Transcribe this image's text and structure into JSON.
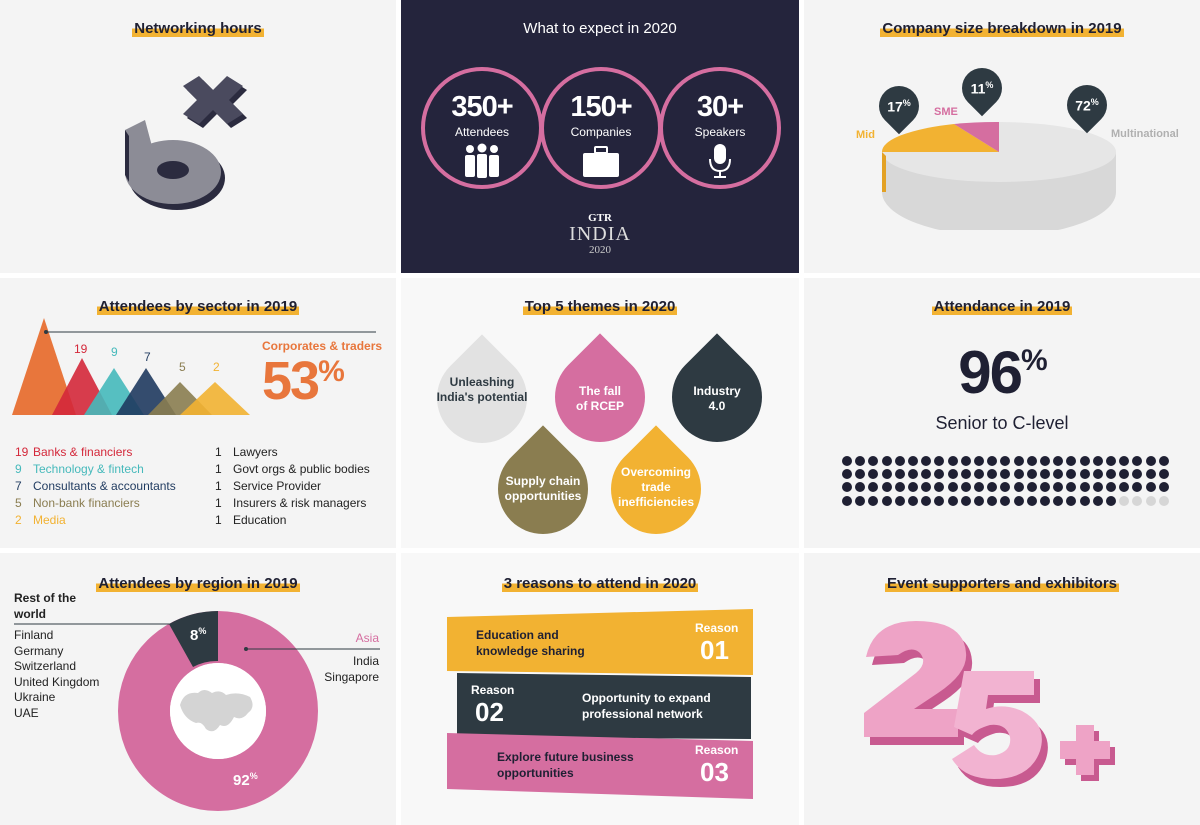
{
  "colors": {
    "navy": "#24243c",
    "pink": "#d56ea0",
    "orange": "#e8763c",
    "yellow": "#f2b232",
    "dark": "#2e3a42",
    "olive": "#8a7d50",
    "teal": "#45b9bb",
    "red": "#d4283a"
  },
  "networking": {
    "title": "Networking hours",
    "graphic_text": "6×"
  },
  "expect": {
    "title": "What to expect in 2020",
    "stats": [
      {
        "value": "350+",
        "label": "Attendees",
        "icon": "people-icon"
      },
      {
        "value": "150+",
        "label": "Companies",
        "icon": "briefcase-icon"
      },
      {
        "value": "30+",
        "label": "Speakers",
        "icon": "microphone-icon"
      }
    ],
    "logo_top": "GTR",
    "logo_main": "INDIA",
    "logo_year": "2020"
  },
  "company_size": {
    "title": "Company size breakdown in 2019",
    "segments": [
      {
        "label": "Mid",
        "percent": 17,
        "color": "#f2b232"
      },
      {
        "label": "SME",
        "percent": 11,
        "color": "#d56ea0"
      },
      {
        "label": "Multinational",
        "percent": 72,
        "color": "#e0e0e0"
      }
    ],
    "percent_sign": "%"
  },
  "sector": {
    "title": "Attendees by sector in 2019",
    "highlight_label": "Corporates & traders",
    "highlight_value": "53",
    "highlight_sign": "%",
    "peaks": [
      {
        "value": "19",
        "color": "#d4283a"
      },
      {
        "value": "9",
        "color": "#45b9bb"
      },
      {
        "value": "7",
        "color": "#1f3a5f"
      },
      {
        "value": "5",
        "color": "#8a7d50"
      },
      {
        "value": "2",
        "color": "#f2b232"
      }
    ],
    "legend_left": [
      {
        "n": "19",
        "label": "Banks & financiers",
        "color": "#d4283a"
      },
      {
        "n": "9",
        "label": "Technology & fintech",
        "color": "#45b9bb"
      },
      {
        "n": "7",
        "label": "Consultants & accountants",
        "color": "#1f3a5f"
      },
      {
        "n": "5",
        "label": "Non-bank financiers",
        "color": "#8a7d50"
      },
      {
        "n": "2",
        "label": "Media",
        "color": "#f2b232"
      }
    ],
    "legend_right": [
      {
        "n": "1",
        "label": "Lawyers"
      },
      {
        "n": "1",
        "label": "Govt orgs & public bodies"
      },
      {
        "n": "1",
        "label": "Service Provider"
      },
      {
        "n": "1",
        "label": "Insurers & risk managers"
      },
      {
        "n": "1",
        "label": "Education"
      }
    ]
  },
  "themes": {
    "title": "Top 5 themes in 2020",
    "items": [
      {
        "label": "Unleashing India's potential",
        "color": "#e2e2e2",
        "text_color": "#2e3a42"
      },
      {
        "label": "The fall of RCEP",
        "color": "#d56ea0",
        "text_color": "#ffffff"
      },
      {
        "label": "Industry 4.0",
        "color": "#2e3a42",
        "text_color": "#ffffff"
      },
      {
        "label": "Supply chain opportunities",
        "color": "#8a7d50",
        "text_color": "#ffffff"
      },
      {
        "label": "Overcoming trade inefficiencies",
        "color": "#f2b232",
        "text_color": "#ffffff"
      }
    ]
  },
  "attendance": {
    "title": "Attendance in 2019",
    "value": "96",
    "sign": "%",
    "caption": "Senior to C-level",
    "percent": 96
  },
  "region": {
    "title": "Attendees by region in 2019",
    "rest_heading": "Rest of the world",
    "rest_percent": "8",
    "rest_countries": [
      "Finland",
      "Germany",
      "Switzerland",
      "United Kingdom",
      "Ukraine",
      "UAE"
    ],
    "asia_heading": "Asia",
    "asia_percent": "92",
    "asia_countries": [
      "India",
      "Singapore"
    ],
    "percent_sign": "%"
  },
  "reasons": {
    "title": "3 reasons to attend in 2020",
    "items": [
      {
        "text": "Education and knowledge sharing",
        "tag": "Reason",
        "num": "01",
        "color": "#f2b232"
      },
      {
        "text": "Opportunity to expand professional network",
        "tag": "Reason",
        "num": "02",
        "color": "#2e3a42"
      },
      {
        "text": "Explore future business opportunities",
        "tag": "Reason",
        "num": "03",
        "color": "#d56ea0"
      }
    ]
  },
  "supporters": {
    "title": "Event supporters and exhibitors",
    "graphic_text": "25+"
  }
}
